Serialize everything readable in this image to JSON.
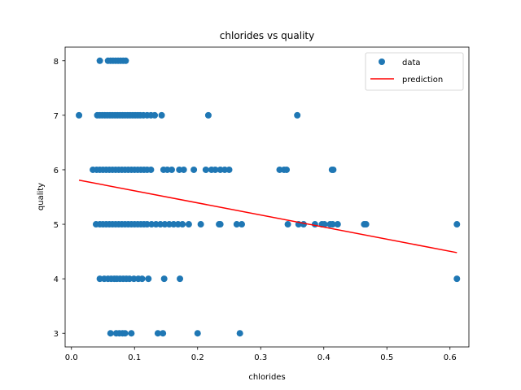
{
  "chart_data": {
    "type": "scatter",
    "title": "chlorides vs quality",
    "xlabel": "chlorides",
    "ylabel": "quality",
    "xlim": [
      -0.01,
      0.63
    ],
    "ylim": [
      2.75,
      8.25
    ],
    "xticks": [
      0.0,
      0.1,
      0.2,
      0.3,
      0.4,
      0.5,
      0.6
    ],
    "xtick_labels": [
      "0.0",
      "0.1",
      "0.2",
      "0.3",
      "0.4",
      "0.5",
      "0.6"
    ],
    "yticks": [
      3,
      4,
      5,
      6,
      7,
      8
    ],
    "ytick_labels": [
      "3",
      "4",
      "5",
      "6",
      "7",
      "8"
    ],
    "grid": false,
    "legend_position": "top-right",
    "series": [
      {
        "name": "data",
        "kind": "scatter",
        "color": "#1f77b4",
        "points": [
          [
            0.045,
            8
          ],
          [
            0.058,
            8
          ],
          [
            0.062,
            8
          ],
          [
            0.066,
            8
          ],
          [
            0.07,
            8
          ],
          [
            0.074,
            8
          ],
          [
            0.078,
            8
          ],
          [
            0.082,
            8
          ],
          [
            0.086,
            8
          ],
          [
            0.012,
            7
          ],
          [
            0.041,
            7
          ],
          [
            0.045,
            7
          ],
          [
            0.049,
            7
          ],
          [
            0.053,
            7
          ],
          [
            0.057,
            7
          ],
          [
            0.061,
            7
          ],
          [
            0.065,
            7
          ],
          [
            0.069,
            7
          ],
          [
            0.073,
            7
          ],
          [
            0.077,
            7
          ],
          [
            0.081,
            7
          ],
          [
            0.085,
            7
          ],
          [
            0.089,
            7
          ],
          [
            0.093,
            7
          ],
          [
            0.097,
            7
          ],
          [
            0.101,
            7
          ],
          [
            0.105,
            7
          ],
          [
            0.109,
            7
          ],
          [
            0.114,
            7
          ],
          [
            0.12,
            7
          ],
          [
            0.126,
            7
          ],
          [
            0.132,
            7
          ],
          [
            0.143,
            7
          ],
          [
            0.217,
            7
          ],
          [
            0.358,
            7
          ],
          [
            0.034,
            6
          ],
          [
            0.04,
            6
          ],
          [
            0.045,
            6
          ],
          [
            0.05,
            6
          ],
          [
            0.055,
            6
          ],
          [
            0.06,
            6
          ],
          [
            0.065,
            6
          ],
          [
            0.07,
            6
          ],
          [
            0.075,
            6
          ],
          [
            0.08,
            6
          ],
          [
            0.085,
            6
          ],
          [
            0.09,
            6
          ],
          [
            0.095,
            6
          ],
          [
            0.1,
            6
          ],
          [
            0.105,
            6
          ],
          [
            0.11,
            6
          ],
          [
            0.115,
            6
          ],
          [
            0.12,
            6
          ],
          [
            0.126,
            6
          ],
          [
            0.146,
            6
          ],
          [
            0.152,
            6
          ],
          [
            0.159,
            6
          ],
          [
            0.171,
            6
          ],
          [
            0.178,
            6
          ],
          [
            0.194,
            6
          ],
          [
            0.213,
            6
          ],
          [
            0.222,
            6
          ],
          [
            0.228,
            6
          ],
          [
            0.236,
            6
          ],
          [
            0.243,
            6
          ],
          [
            0.25,
            6
          ],
          [
            0.33,
            6
          ],
          [
            0.337,
            6
          ],
          [
            0.341,
            6
          ],
          [
            0.413,
            6
          ],
          [
            0.415,
            6
          ],
          [
            0.039,
            5
          ],
          [
            0.045,
            5
          ],
          [
            0.05,
            5
          ],
          [
            0.055,
            5
          ],
          [
            0.06,
            5
          ],
          [
            0.065,
            5
          ],
          [
            0.07,
            5
          ],
          [
            0.075,
            5
          ],
          [
            0.08,
            5
          ],
          [
            0.085,
            5
          ],
          [
            0.09,
            5
          ],
          [
            0.095,
            5
          ],
          [
            0.1,
            5
          ],
          [
            0.105,
            5
          ],
          [
            0.11,
            5
          ],
          [
            0.115,
            5
          ],
          [
            0.12,
            5
          ],
          [
            0.127,
            5
          ],
          [
            0.134,
            5
          ],
          [
            0.141,
            5
          ],
          [
            0.148,
            5
          ],
          [
            0.155,
            5
          ],
          [
            0.162,
            5
          ],
          [
            0.169,
            5
          ],
          [
            0.176,
            5
          ],
          [
            0.186,
            5
          ],
          [
            0.205,
            5
          ],
          [
            0.234,
            5
          ],
          [
            0.236,
            5
          ],
          [
            0.262,
            5
          ],
          [
            0.27,
            5
          ],
          [
            0.343,
            5
          ],
          [
            0.36,
            5
          ],
          [
            0.368,
            5
          ],
          [
            0.386,
            5
          ],
          [
            0.397,
            5
          ],
          [
            0.401,
            5
          ],
          [
            0.41,
            5
          ],
          [
            0.414,
            5
          ],
          [
            0.422,
            5
          ],
          [
            0.464,
            5
          ],
          [
            0.467,
            5
          ],
          [
            0.611,
            5
          ],
          [
            0.045,
            4
          ],
          [
            0.052,
            4
          ],
          [
            0.058,
            4
          ],
          [
            0.063,
            4
          ],
          [
            0.068,
            4
          ],
          [
            0.072,
            4
          ],
          [
            0.077,
            4
          ],
          [
            0.082,
            4
          ],
          [
            0.087,
            4
          ],
          [
            0.092,
            4
          ],
          [
            0.099,
            4
          ],
          [
            0.106,
            4
          ],
          [
            0.112,
            4
          ],
          [
            0.122,
            4
          ],
          [
            0.147,
            4
          ],
          [
            0.172,
            4
          ],
          [
            0.611,
            4
          ],
          [
            0.062,
            3
          ],
          [
            0.071,
            3
          ],
          [
            0.076,
            3
          ],
          [
            0.081,
            3
          ],
          [
            0.085,
            3
          ],
          [
            0.095,
            3
          ],
          [
            0.137,
            3
          ],
          [
            0.145,
            3
          ],
          [
            0.2,
            3
          ],
          [
            0.267,
            3
          ]
        ]
      },
      {
        "name": "prediction",
        "kind": "line",
        "color": "#ff0000",
        "points": [
          [
            0.012,
            5.81
          ],
          [
            0.611,
            4.48
          ]
        ]
      }
    ]
  }
}
